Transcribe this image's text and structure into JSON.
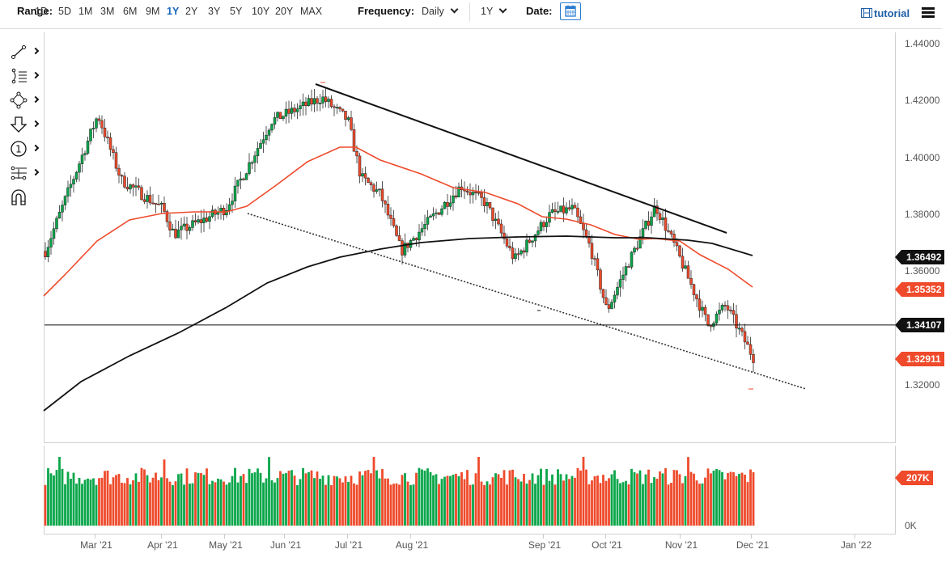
{
  "toolbar": {
    "range_label": "Range:",
    "ranges": [
      "1D",
      "5D",
      "1M",
      "3M",
      "6M",
      "9M",
      "1Y",
      "2Y",
      "3Y",
      "5Y",
      "10Y",
      "20Y",
      "MAX"
    ],
    "active_range": "1Y",
    "frequency_label": "Frequency:",
    "frequency_value": "Daily",
    "period_value": "1Y",
    "date_label": "Date:",
    "calendar_icon": "calendar-icon",
    "tutorial_label": "tutorial",
    "tutorial_icon": "film-icon",
    "menu_icon": "hamburger-menu-icon"
  },
  "sidebar": {
    "tools": [
      {
        "name": "trend-line-tool",
        "icon": "line-segment-icon"
      },
      {
        "name": "fibonacci-tool",
        "icon": "fib-retracement-icon"
      },
      {
        "name": "shapes-tool",
        "icon": "polygon-nodes-icon"
      },
      {
        "name": "annotations-tool",
        "icon": "arrow-down-icon"
      },
      {
        "name": "counter-tool",
        "icon": "numbered-circle-icon"
      },
      {
        "name": "measure-tool",
        "icon": "measure-icon"
      },
      {
        "name": "magnet-tool",
        "icon": "magnet-icon"
      }
    ]
  },
  "chart_data": {
    "type": "candlestick",
    "title": "",
    "frequency": "Daily",
    "range": "1Y",
    "y_axis": {
      "ticks": [
        "1.44000",
        "1.42000",
        "1.40000",
        "1.38000",
        "1.36000",
        "1.32000"
      ],
      "ylim": [
        1.305,
        1.445
      ]
    },
    "x_axis": {
      "ticks": [
        "Mar '21",
        "Apr '21",
        "May '21",
        "Jun '21",
        "Jul '21",
        "Aug '21",
        "Sep '21",
        "Oct '21",
        "Nov '21",
        "Dec '21",
        "Jan '22"
      ]
    },
    "price_tags": [
      {
        "label": "1.36492",
        "color": "black",
        "meaning": "200-day moving average"
      },
      {
        "label": "1.35352",
        "color": "red",
        "meaning": "50-day moving average"
      },
      {
        "label": "1.34107",
        "color": "black",
        "meaning": "horizontal line"
      },
      {
        "label": "1.32911",
        "color": "red",
        "meaning": "last close"
      }
    ],
    "close_path_approx": [
      [
        "late Feb",
        1.367
      ],
      [
        "Mar '21 peak",
        1.415
      ],
      [
        "mid Mar",
        1.392
      ],
      [
        "Apr '21",
        1.382
      ],
      [
        "Apr low",
        1.373
      ],
      [
        "May '21",
        1.382
      ],
      [
        "mid May",
        1.413
      ],
      [
        "Jun '21 high",
        1.421
      ],
      [
        "mid Jun",
        1.413
      ],
      [
        "late Jun",
        1.393
      ],
      [
        "Jul '21",
        1.387
      ],
      [
        "Jul low",
        1.367
      ],
      [
        "Aug '21",
        1.39
      ],
      [
        "mid Aug",
        1.384
      ],
      [
        "Aug low",
        1.364
      ],
      [
        "Sep '21",
        1.38
      ],
      [
        "mid Sep",
        1.382
      ],
      [
        "late Sep",
        1.368
      ],
      [
        "Oct '21 low",
        1.346
      ],
      [
        "mid Oct",
        1.362
      ],
      [
        "late Oct high",
        1.383
      ],
      [
        "Nov '21",
        1.37
      ],
      [
        "Nov low",
        1.341
      ],
      [
        "mid Nov",
        1.348
      ],
      [
        "Dec '21 last",
        1.3291
      ]
    ],
    "moving_averages": [
      {
        "name": "50-day MA",
        "color": "#ee4a2b",
        "last": 1.35352
      },
      {
        "name": "200-day MA",
        "color": "#111111",
        "last": 1.36492
      }
    ],
    "drawings": [
      {
        "type": "trend-line",
        "style": "solid",
        "from": [
          "Jun '21",
          1.425
        ],
        "to": [
          "late Nov",
          1.3725
        ]
      },
      {
        "type": "trend-line",
        "style": "dotted",
        "from": [
          "May '21",
          1.381
        ],
        "to": [
          "Dec '21",
          1.3175
        ]
      },
      {
        "type": "horizontal-line",
        "style": "solid",
        "value": 1.34107
      }
    ],
    "volume": {
      "ylabel_ticks": [
        "0K"
      ],
      "last_tag": "207K",
      "colors": {
        "up": "#0aa64a",
        "down": "#ee4a2b"
      }
    },
    "colors": {
      "up": "#0aa64a",
      "down": "#ee4a2b"
    },
    "grid": false,
    "legend": "none"
  }
}
